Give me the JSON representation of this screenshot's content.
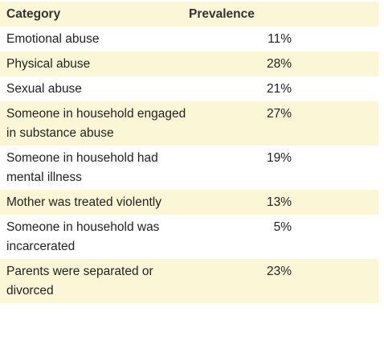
{
  "table": {
    "header": [
      "Category",
      "Prevalence"
    ],
    "rows": [
      [
        "Emotional abuse",
        "11%"
      ],
      [
        "Physical abuse",
        "28%"
      ],
      [
        "Sexual abuse",
        "21%"
      ],
      [
        "Someone in household engaged in substance abuse",
        "27%"
      ],
      [
        "Someone in household had mental illness",
        "19%"
      ],
      [
        "Mother was treated violently",
        "13%"
      ],
      [
        "Someone in household was incarcerated",
        "5%"
      ],
      [
        "Parents were separated or divorced",
        "23%"
      ]
    ]
  }
}
